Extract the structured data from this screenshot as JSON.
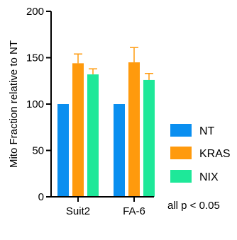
{
  "chart_data": {
    "type": "bar",
    "ylabel": "Mito Fraction relative to NT",
    "xlabel": "",
    "ylim": [
      0,
      200
    ],
    "yticks": [
      0,
      50,
      100,
      150,
      200
    ],
    "categories": [
      "Suit2",
      "FA-6"
    ],
    "series": [
      {
        "name": "NT",
        "color": "#0a8ff0",
        "values": [
          100,
          100
        ],
        "errors": [
          0,
          0
        ]
      },
      {
        "name": "KRAS",
        "color": "#ff9a0d",
        "values": [
          144,
          145
        ],
        "errors": [
          10,
          16
        ]
      },
      {
        "name": "NIX",
        "color": "#1ee899",
        "values": [
          132,
          126
        ],
        "errors": [
          6,
          7
        ]
      }
    ],
    "annotation": "all p < 0.05",
    "legend_position": "right",
    "grid": false,
    "error_bar_color": "#ff9a0d"
  }
}
